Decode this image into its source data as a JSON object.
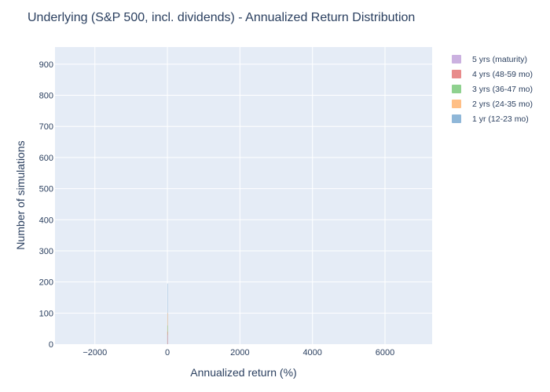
{
  "chart_data": {
    "type": "histogram",
    "title": "Underlying (S&P 500, incl. dividends) - Annualized Return Distribution",
    "xlabel": "Annualized return (%)",
    "ylabel": "Number of simulations",
    "xlim": [
      -3100,
      7300
    ],
    "ylim": [
      0,
      955
    ],
    "xticks": [
      -2000,
      0,
      2000,
      4000,
      6000
    ],
    "xtick_labels": [
      "−2000",
      "0",
      "2000",
      "4000",
      "6000"
    ],
    "yticks": [
      0,
      100,
      200,
      300,
      400,
      500,
      600,
      700,
      800,
      900
    ],
    "ytick_labels": [
      "0",
      "100",
      "200",
      "300",
      "400",
      "500",
      "600",
      "700",
      "800",
      "900"
    ],
    "grid": true,
    "legend_position": "right",
    "series": [
      {
        "name": "5 yrs (maturity)",
        "color": "#cbb1e0",
        "x": [
          0
        ],
        "values": [
          30
        ]
      },
      {
        "name": "4 yrs (48-59 mo)",
        "color": "#e88b8b",
        "x": [
          0
        ],
        "values": [
          40
        ]
      },
      {
        "name": "3 yrs (36-47 mo)",
        "color": "#8fd18f",
        "x": [
          0
        ],
        "values": [
          60
        ]
      },
      {
        "name": "2 yrs (24-35 mo)",
        "color": "#ffbf86",
        "x": [
          0
        ],
        "values": [
          100
        ]
      },
      {
        "name": "1 yr (12-23 mo)",
        "color": "#8fb7d8",
        "x": [
          0
        ],
        "values": [
          195
        ]
      }
    ]
  }
}
